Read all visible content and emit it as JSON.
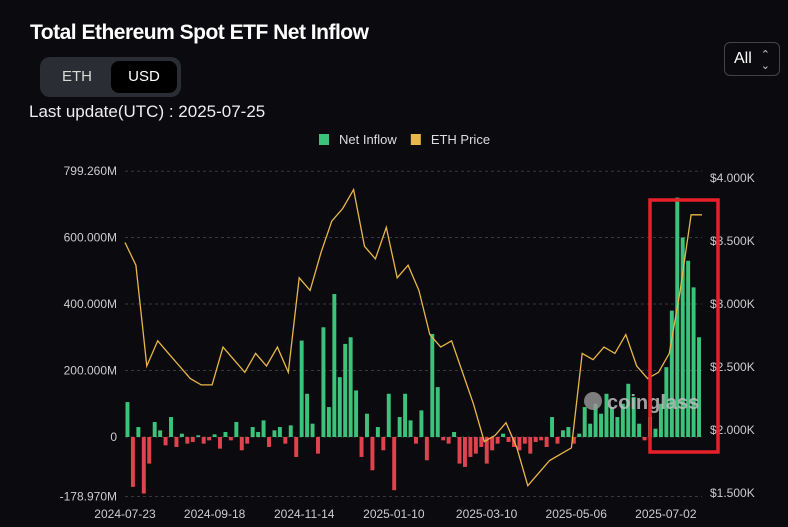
{
  "header": {
    "title": "Total Ethereum Spot ETF Net Inflow",
    "toggle": [
      "ETH",
      "USD"
    ],
    "selected": "USD",
    "last_update": "Last update(UTC) : 2025-07-25",
    "range": "All"
  },
  "watermark": "coinglass",
  "chart_data": {
    "type": "bar+line",
    "title": "Total Ethereum Spot ETF Net Inflow",
    "legend": [
      {
        "name": "Net Inflow",
        "color": "#3cc27a"
      },
      {
        "name": "ETH Price",
        "color": "#e8b649"
      }
    ],
    "legend_position": "top-center",
    "left_axis": {
      "ticks": [
        "799.260M",
        "600.000M",
        "400.000M",
        "200.000M",
        "0",
        "-178.970M"
      ],
      "values": [
        799.26,
        600,
        400,
        200,
        0,
        -178.97
      ],
      "ylim": [
        -178.97,
        799.26
      ],
      "unit": "M USD"
    },
    "right_axis": {
      "ticks": [
        "$4.000K",
        "$3.500K",
        "$3.000K",
        "$2.500K",
        "$2.000K",
        "$1.500K"
      ],
      "values": [
        4.0,
        3.5,
        3.0,
        2.5,
        2.0,
        1.5
      ],
      "ylim": [
        1.5,
        4.0
      ],
      "unit": "K USD"
    },
    "x_ticks": [
      "2024-07-23",
      "2024-09-18",
      "2024-11-14",
      "2025-01-10",
      "2025-03-10",
      "2025-05-06",
      "2025-07-02"
    ],
    "x_range": [
      "2024-07-23",
      "2025-07-25"
    ],
    "net_inflow": [
      105,
      -150,
      30,
      -170,
      -80,
      45,
      20,
      -25,
      60,
      -30,
      10,
      -20,
      -15,
      5,
      -20,
      -10,
      8,
      -35,
      15,
      -10,
      45,
      -40,
      -20,
      30,
      15,
      50,
      -30,
      20,
      30,
      -20,
      35,
      -60,
      290,
      130,
      40,
      -50,
      330,
      90,
      430,
      180,
      280,
      300,
      140,
      -60,
      70,
      -100,
      30,
      -40,
      130,
      -160,
      60,
      130,
      50,
      -20,
      80,
      -70,
      310,
      150,
      -10,
      -20,
      15,
      -80,
      -90,
      -60,
      -50,
      -30,
      -80,
      -40,
      -20,
      10,
      -15,
      -30,
      -40,
      -20,
      -50,
      -15,
      -10,
      -30,
      60,
      -20,
      20,
      30,
      -20,
      10,
      90,
      40,
      100,
      70,
      130,
      90,
      60,
      100,
      160,
      120,
      40,
      -10,
      60,
      25,
      100,
      210,
      380,
      720,
      600,
      530,
      450,
      300
    ],
    "eth_price": [
      3.48,
      3.3,
      2.5,
      2.7,
      2.6,
      2.5,
      2.4,
      2.35,
      2.35,
      2.65,
      2.55,
      2.45,
      2.6,
      2.5,
      2.65,
      2.45,
      3.2,
      3.1,
      3.4,
      3.65,
      3.75,
      3.9,
      3.45,
      3.35,
      3.6,
      3.2,
      3.3,
      3.1,
      2.75,
      2.65,
      2.7,
      2.45,
      2.2,
      1.9,
      1.95,
      2.05,
      1.85,
      1.55,
      1.65,
      1.75,
      1.8,
      1.85,
      2.6,
      2.55,
      2.65,
      2.6,
      2.75,
      2.5,
      2.4,
      2.45,
      2.6,
      3.1,
      3.7,
      3.7
    ],
    "annotation": "red highlight box around July 2025 inflows",
    "colors": {
      "inflow_pos": "#3cc27a",
      "inflow_neg": "#e0434e",
      "price": "#e8b649",
      "highlight": "#e8202a",
      "grid": "#3a3a3a"
    }
  }
}
